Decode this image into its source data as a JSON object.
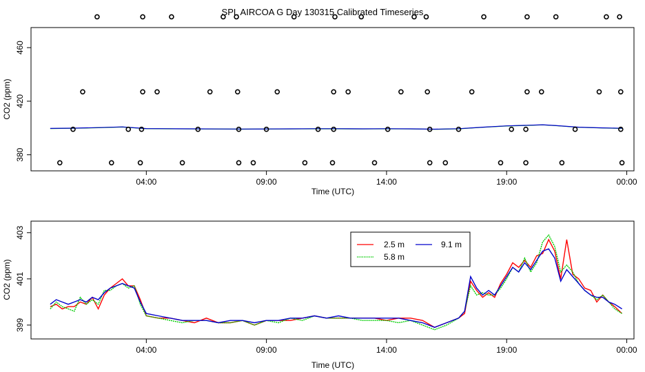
{
  "title": "SPL AIRCOA G  Day 130315  Calibrated Timeseries",
  "chart_data": [
    {
      "type": "scatter",
      "name": "calibration-panel",
      "xlabel": "Time (UTC)",
      "ylabel": "CO2 (ppm)",
      "xlim": [
        -0.8,
        24.3
      ],
      "ylim": [
        368,
        475
      ],
      "xticks": [
        {
          "v": 4,
          "label": "04:00"
        },
        {
          "v": 9,
          "label": "09:00"
        },
        {
          "v": 14,
          "label": "14:00"
        },
        {
          "v": 19,
          "label": "19:00"
        },
        {
          "v": 24,
          "label": "00:00"
        }
      ],
      "yticks": [
        {
          "v": 380,
          "label": "380"
        },
        {
          "v": 420,
          "label": "420"
        },
        {
          "v": 460,
          "label": "460"
        }
      ],
      "grid": false,
      "markers": {
        "y_483": [
          1.95,
          3.85,
          5.05,
          7.2,
          7.75,
          10.15,
          11.85,
          12.95,
          15.15,
          15.65,
          18.05,
          19.85,
          21.05,
          23.15,
          23.7
        ],
        "y_427": [
          1.35,
          3.85,
          4.45,
          6.65,
          7.8,
          9.45,
          11.8,
          12.4,
          14.6,
          15.7,
          17.55,
          19.85,
          20.45,
          22.85,
          23.75
        ],
        "y_399": [
          0.95,
          3.25,
          3.8,
          6.15,
          7.85,
          9.0,
          11.15,
          11.8,
          14.05,
          15.8,
          17.0,
          19.2,
          19.8,
          21.85,
          23.75
        ],
        "y_374": [
          0.4,
          2.55,
          3.75,
          5.5,
          7.85,
          8.45,
          10.6,
          11.75,
          13.5,
          15.8,
          16.45,
          18.75,
          19.8,
          21.3,
          23.8
        ]
      },
      "line": {
        "x": [
          0,
          1,
          2,
          3,
          4,
          5,
          6,
          7,
          8,
          9,
          10,
          11,
          12,
          13,
          14,
          15,
          16,
          17,
          18,
          19,
          20,
          20.5,
          21,
          22,
          23,
          23.8
        ],
        "values": [
          399.6,
          399.8,
          400.2,
          400.7,
          399.5,
          399.4,
          399.3,
          399.2,
          399.1,
          399.2,
          399.3,
          399.4,
          399.4,
          399.3,
          399.4,
          399.3,
          399.0,
          399.4,
          400.5,
          401.5,
          402.0,
          402.3,
          401.8,
          400.5,
          400.0,
          399.7
        ]
      }
    },
    {
      "type": "line",
      "name": "timeseries-panel",
      "xlabel": "Time (UTC)",
      "ylabel": "CO2 (ppm)",
      "xlim": [
        -0.8,
        24.3
      ],
      "ylim": [
        398.4,
        403.5
      ],
      "xticks": [
        {
          "v": 4,
          "label": "04:00"
        },
        {
          "v": 9,
          "label": "09:00"
        },
        {
          "v": 14,
          "label": "14:00"
        },
        {
          "v": 19,
          "label": "19:00"
        },
        {
          "v": 24,
          "label": "00:00"
        }
      ],
      "yticks": [
        {
          "v": 399,
          "label": "399"
        },
        {
          "v": 401,
          "label": "401"
        },
        {
          "v": 403,
          "label": "403"
        }
      ],
      "grid": false,
      "legend_placement": "top-right",
      "series": [
        {
          "name": "2.5 m",
          "color": "#ff0000",
          "x": [
            0,
            0.25,
            0.5,
            0.75,
            1,
            1.25,
            1.5,
            1.75,
            2,
            2.25,
            2.5,
            2.75,
            3,
            3.25,
            3.5,
            3.75,
            4,
            4.5,
            5,
            5.5,
            6,
            6.5,
            7,
            7.5,
            8,
            8.5,
            9,
            9.5,
            10,
            10.5,
            11,
            11.5,
            12,
            12.5,
            13,
            13.5,
            14,
            14.5,
            15,
            15.5,
            16,
            16.5,
            17,
            17.25,
            17.5,
            17.75,
            18,
            18.25,
            18.5,
            18.75,
            19,
            19.25,
            19.5,
            19.75,
            20,
            20.25,
            20.5,
            20.75,
            21,
            21.25,
            21.5,
            21.75,
            22,
            22.25,
            22.5,
            22.75,
            23,
            23.25,
            23.5,
            23.8
          ],
          "values": [
            399.8,
            399.9,
            399.7,
            399.8,
            399.8,
            400.0,
            399.9,
            400.2,
            399.7,
            400.3,
            400.6,
            400.8,
            401.0,
            400.7,
            400.7,
            400.1,
            399.4,
            399.3,
            399.3,
            399.2,
            399.1,
            399.3,
            399.1,
            399.1,
            399.2,
            399.0,
            399.2,
            399.2,
            399.2,
            399.3,
            399.4,
            399.3,
            399.3,
            399.3,
            399.3,
            399.3,
            399.2,
            399.3,
            399.3,
            399.2,
            398.9,
            399.1,
            399.3,
            399.5,
            400.9,
            400.5,
            400.2,
            400.4,
            400.2,
            400.8,
            401.2,
            401.7,
            401.5,
            401.8,
            401.5,
            402.0,
            402.1,
            402.7,
            402.2,
            401.0,
            402.7,
            401.2,
            401.0,
            400.6,
            400.5,
            400.0,
            400.3,
            400.0,
            399.8,
            399.5
          ]
        },
        {
          "name": "5.8 m",
          "color": "#00cc00",
          "x": [
            0,
            0.25,
            0.5,
            0.75,
            1,
            1.25,
            1.5,
            1.75,
            2,
            2.25,
            2.5,
            2.75,
            3,
            3.25,
            3.5,
            3.75,
            4,
            4.5,
            5,
            5.5,
            6,
            6.5,
            7,
            7.5,
            8,
            8.5,
            9,
            9.5,
            10,
            10.5,
            11,
            11.5,
            12,
            12.5,
            13,
            13.5,
            14,
            14.5,
            15,
            15.5,
            16,
            16.5,
            17,
            17.25,
            17.5,
            17.75,
            18,
            18.25,
            18.5,
            18.75,
            19,
            19.25,
            19.5,
            19.75,
            20,
            20.25,
            20.5,
            20.75,
            21,
            21.25,
            21.5,
            21.75,
            22,
            22.25,
            22.5,
            22.75,
            23,
            23.25,
            23.5,
            23.8
          ],
          "values": [
            399.7,
            400.0,
            399.8,
            399.7,
            399.6,
            400.2,
            399.9,
            400.1,
            399.9,
            400.5,
            400.5,
            400.7,
            400.8,
            400.6,
            400.7,
            399.9,
            399.4,
            399.3,
            399.2,
            399.1,
            399.2,
            399.2,
            399.1,
            399.1,
            399.2,
            399.0,
            399.2,
            399.1,
            399.3,
            399.2,
            399.4,
            399.3,
            399.3,
            399.3,
            399.2,
            399.2,
            399.2,
            399.1,
            399.2,
            399.0,
            398.8,
            399.0,
            399.3,
            399.6,
            400.7,
            400.3,
            400.4,
            400.3,
            400.3,
            400.6,
            401.0,
            401.5,
            401.3,
            401.9,
            401.3,
            401.7,
            402.6,
            402.9,
            402.4,
            401.3,
            401.6,
            401.3,
            400.8,
            400.5,
            400.3,
            400.1,
            400.3,
            400.0,
            399.7,
            399.5
          ]
        },
        {
          "name": "9.1 m",
          "color": "#0000cc",
          "x": [
            0,
            0.25,
            0.5,
            0.75,
            1,
            1.25,
            1.5,
            1.75,
            2,
            2.25,
            2.5,
            2.75,
            3,
            3.25,
            3.5,
            3.75,
            4,
            4.5,
            5,
            5.5,
            6,
            6.5,
            7,
            7.5,
            8,
            8.5,
            9,
            9.5,
            10,
            10.5,
            11,
            11.5,
            12,
            12.5,
            13,
            13.5,
            14,
            14.5,
            15,
            15.5,
            16,
            16.5,
            17,
            17.25,
            17.5,
            17.75,
            18,
            18.25,
            18.5,
            18.75,
            19,
            19.25,
            19.5,
            19.75,
            20,
            20.25,
            20.5,
            20.75,
            21,
            21.25,
            21.5,
            21.75,
            22,
            22.25,
            22.5,
            22.75,
            23,
            23.25,
            23.5,
            23.8
          ],
          "values": [
            399.9,
            400.1,
            400.0,
            399.9,
            400.0,
            400.1,
            400.0,
            400.2,
            400.1,
            400.4,
            400.6,
            400.7,
            400.8,
            400.7,
            400.6,
            400.0,
            399.5,
            399.4,
            399.3,
            399.2,
            399.2,
            399.2,
            399.1,
            399.2,
            399.2,
            399.1,
            399.2,
            399.2,
            399.3,
            399.3,
            399.4,
            399.3,
            399.4,
            399.3,
            399.3,
            399.3,
            399.3,
            399.3,
            399.2,
            399.1,
            398.9,
            399.1,
            399.3,
            399.6,
            401.1,
            400.6,
            400.3,
            400.5,
            400.3,
            400.7,
            401.1,
            401.5,
            401.3,
            401.7,
            401.4,
            401.8,
            402.2,
            402.3,
            401.9,
            400.9,
            401.4,
            401.1,
            400.8,
            400.5,
            400.3,
            400.2,
            400.2,
            400.0,
            399.9,
            399.7
          ]
        }
      ]
    }
  ]
}
